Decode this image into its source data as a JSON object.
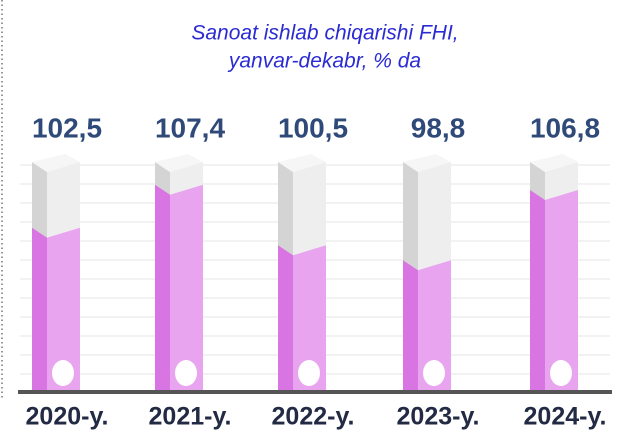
{
  "chart_data": {
    "type": "bar3d",
    "title": "Sanoat ishlab chiqarishi FHI,",
    "subtitle": "yanvar-dekabr, % da",
    "categories": [
      "2020-y.",
      "2021-y.",
      "2022-y.",
      "2023-y.",
      "2024-y."
    ],
    "values": [
      102.5,
      107.4,
      100.5,
      98.8,
      106.8
    ],
    "value_labels": [
      "102,5",
      "107,4",
      "100,5",
      "98,8",
      "106,8"
    ],
    "color": "#e8a4ef",
    "ylim": [
      84,
      110
    ]
  }
}
